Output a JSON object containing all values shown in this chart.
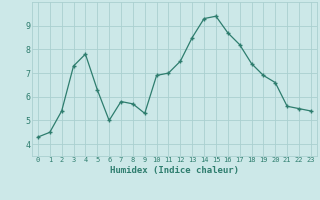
{
  "x": [
    0,
    1,
    2,
    3,
    4,
    5,
    6,
    7,
    8,
    9,
    10,
    11,
    12,
    13,
    14,
    15,
    16,
    17,
    18,
    19,
    20,
    21,
    22,
    23
  ],
  "y": [
    4.3,
    4.5,
    5.4,
    7.3,
    7.8,
    6.3,
    5.0,
    5.8,
    5.7,
    5.3,
    6.9,
    7.0,
    7.5,
    8.5,
    9.3,
    9.4,
    8.7,
    8.2,
    7.4,
    6.9,
    6.6,
    5.6,
    5.5,
    5.4
  ],
  "xlabel": "Humidex (Indice chaleur)",
  "xtick_labels": [
    "0",
    "1",
    "2",
    "3",
    "4",
    "5",
    "6",
    "7",
    "8",
    "9",
    "10",
    "11",
    "12",
    "13",
    "14",
    "15",
    "16",
    "17",
    "18",
    "19",
    "20",
    "21",
    "22",
    "23"
  ],
  "ylim": [
    3.5,
    10.0
  ],
  "yticks": [
    4,
    5,
    6,
    7,
    8,
    9
  ],
  "line_color": "#2e7d6e",
  "marker": "+",
  "bg_color": "#cce8e8",
  "grid_color": "#aad0d0",
  "tick_label_color": "#2e7d6e",
  "xlabel_color": "#2e7d6e"
}
